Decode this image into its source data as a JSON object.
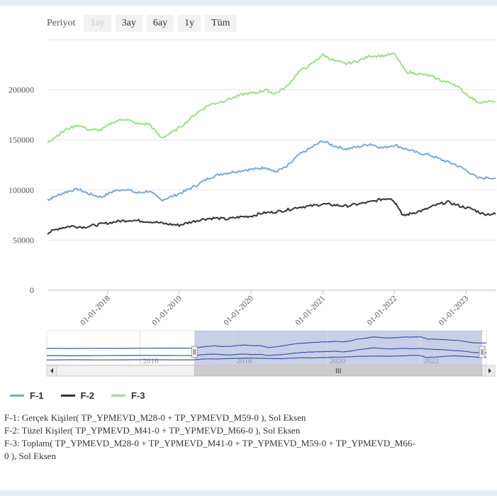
{
  "range_selector": {
    "label": "Periyot",
    "buttons": [
      {
        "label": "1ay",
        "disabled": true
      },
      {
        "label": "3ay",
        "disabled": false
      },
      {
        "label": "6ay",
        "disabled": false
      },
      {
        "label": "1y",
        "disabled": false
      },
      {
        "label": "Tüm",
        "disabled": false
      }
    ]
  },
  "chart_data": {
    "type": "line",
    "title": "",
    "xlabel": "",
    "ylabel": "",
    "xlim": [
      "2017-03-01",
      "2023-06-01"
    ],
    "ylim": [
      0,
      250000
    ],
    "y_ticks": [
      0,
      50000,
      100000,
      150000,
      200000
    ],
    "y_tick_labels": [
      "0",
      "50000",
      "100000",
      "150000",
      "200000"
    ],
    "x_ticks": [
      "2018-01-01",
      "2019-01-01",
      "2020-01-01",
      "2021-01-01",
      "2022-01-01",
      "2023-01-01"
    ],
    "x_tick_labels": [
      "01-01-2018",
      "01-01-2019",
      "01-01-2020",
      "01-01-2021",
      "01-01-2022",
      "01-01-2023"
    ],
    "grid": true,
    "legend_position": "bottom-left",
    "series": [
      {
        "name": "F-1",
        "color": "#7ca7d8",
        "points": [
          [
            "2017-03-01",
            90000
          ],
          [
            "2017-04-01",
            93000
          ],
          [
            "2017-06-01",
            98000
          ],
          [
            "2017-08-01",
            101000
          ],
          [
            "2017-10-01",
            96000
          ],
          [
            "2017-12-01",
            93000
          ],
          [
            "2018-02-01",
            99000
          ],
          [
            "2018-04-01",
            101000
          ],
          [
            "2018-06-01",
            97000
          ],
          [
            "2018-08-01",
            99000
          ],
          [
            "2018-10-01",
            90000
          ],
          [
            "2018-12-01",
            94000
          ],
          [
            "2019-02-01",
            99000
          ],
          [
            "2019-04-01",
            105000
          ],
          [
            "2019-06-01",
            112000
          ],
          [
            "2019-08-01",
            116000
          ],
          [
            "2019-10-01",
            118000
          ],
          [
            "2019-12-01",
            120000
          ],
          [
            "2020-02-01",
            121000
          ],
          [
            "2020-03-15",
            123000
          ],
          [
            "2020-05-01",
            118000
          ],
          [
            "2020-07-01",
            123000
          ],
          [
            "2020-09-01",
            135000
          ],
          [
            "2020-11-01",
            142000
          ],
          [
            "2021-01-01",
            149000
          ],
          [
            "2021-03-01",
            144000
          ],
          [
            "2021-05-01",
            141000
          ],
          [
            "2021-07-01",
            143000
          ],
          [
            "2021-09-01",
            146000
          ],
          [
            "2021-11-01",
            142000
          ],
          [
            "2022-01-01",
            145000
          ],
          [
            "2022-03-01",
            141000
          ],
          [
            "2022-05-01",
            137000
          ],
          [
            "2022-07-01",
            135000
          ],
          [
            "2022-09-01",
            130000
          ],
          [
            "2022-11-01",
            126000
          ],
          [
            "2023-01-01",
            120000
          ],
          [
            "2023-03-01",
            112000
          ],
          [
            "2023-06-01",
            112000
          ]
        ]
      },
      {
        "name": "F-2",
        "color": "#333333",
        "points": [
          [
            "2017-03-01",
            57000
          ],
          [
            "2017-05-01",
            62000
          ],
          [
            "2017-07-01",
            64000
          ],
          [
            "2017-09-01",
            63000
          ],
          [
            "2017-11-01",
            65000
          ],
          [
            "2018-01-01",
            67000
          ],
          [
            "2018-03-01",
            69000
          ],
          [
            "2018-05-01",
            70000
          ],
          [
            "2018-07-01",
            69000
          ],
          [
            "2018-09-01",
            68000
          ],
          [
            "2018-11-01",
            66000
          ],
          [
            "2019-01-01",
            65000
          ],
          [
            "2019-03-01",
            68000
          ],
          [
            "2019-05-01",
            71000
          ],
          [
            "2019-07-01",
            72000
          ],
          [
            "2019-09-01",
            71000
          ],
          [
            "2019-11-01",
            73000
          ],
          [
            "2020-01-01",
            74000
          ],
          [
            "2020-03-01",
            77000
          ],
          [
            "2020-05-01",
            78000
          ],
          [
            "2020-07-01",
            80000
          ],
          [
            "2020-09-01",
            83000
          ],
          [
            "2020-11-01",
            84000
          ],
          [
            "2021-01-01",
            86000
          ],
          [
            "2021-03-01",
            85000
          ],
          [
            "2021-05-01",
            84000
          ],
          [
            "2021-07-01",
            86000
          ],
          [
            "2021-09-01",
            88000
          ],
          [
            "2021-11-01",
            91000
          ],
          [
            "2021-12-15",
            92000
          ],
          [
            "2022-01-20",
            84000
          ],
          [
            "2022-02-15",
            74000
          ],
          [
            "2022-04-01",
            77000
          ],
          [
            "2022-06-01",
            80000
          ],
          [
            "2022-08-01",
            85000
          ],
          [
            "2022-10-01",
            88000
          ],
          [
            "2022-12-01",
            84000
          ],
          [
            "2023-02-01",
            81000
          ],
          [
            "2023-04-01",
            76000
          ],
          [
            "2023-06-01",
            76000
          ]
        ]
      },
      {
        "name": "F-3",
        "color": "#9ee089",
        "points": [
          [
            "2017-03-01",
            147000
          ],
          [
            "2017-04-01",
            152000
          ],
          [
            "2017-06-01",
            160000
          ],
          [
            "2017-08-01",
            165000
          ],
          [
            "2017-10-01",
            160000
          ],
          [
            "2017-12-01",
            160000
          ],
          [
            "2018-02-01",
            168000
          ],
          [
            "2018-04-01",
            171000
          ],
          [
            "2018-06-01",
            166000
          ],
          [
            "2018-08-01",
            166000
          ],
          [
            "2018-10-01",
            152000
          ],
          [
            "2018-12-01",
            158000
          ],
          [
            "2019-02-01",
            167000
          ],
          [
            "2019-04-01",
            177000
          ],
          [
            "2019-06-01",
            185000
          ],
          [
            "2019-08-01",
            188000
          ],
          [
            "2019-10-01",
            192000
          ],
          [
            "2019-12-01",
            196000
          ],
          [
            "2020-02-01",
            197000
          ],
          [
            "2020-03-15",
            200000
          ],
          [
            "2020-05-01",
            196000
          ],
          [
            "2020-07-01",
            203000
          ],
          [
            "2020-09-01",
            218000
          ],
          [
            "2020-11-01",
            225000
          ],
          [
            "2021-01-01",
            235000
          ],
          [
            "2021-03-01",
            229000
          ],
          [
            "2021-05-01",
            226000
          ],
          [
            "2021-07-01",
            229000
          ],
          [
            "2021-09-01",
            234000
          ],
          [
            "2021-11-01",
            234000
          ],
          [
            "2022-01-01",
            236000
          ],
          [
            "2022-03-01",
            218000
          ],
          [
            "2022-05-01",
            216000
          ],
          [
            "2022-07-01",
            214000
          ],
          [
            "2022-09-01",
            209000
          ],
          [
            "2022-11-01",
            206000
          ],
          [
            "2023-01-01",
            196000
          ],
          [
            "2023-03-01",
            188000
          ],
          [
            "2023-06-01",
            188000
          ]
        ]
      }
    ],
    "navigator": {
      "xlim": [
        "2014-01-01",
        "2023-06-01"
      ],
      "year_labels": [
        "2016",
        "2018",
        "2020",
        "2022"
      ],
      "selected_range": [
        "2017-03-01",
        "2023-06-01"
      ],
      "scrollbar_glyph": "III"
    }
  },
  "descriptions": [
    "F-1: Gerçek Kişiler( TP_YPMEVD_M28-0 + TP_YPMEVD_M59-0 ), Sol Eksen",
    "F-2: Tüzel Kişiler( TP_YPMEVD_M41-0 + TP_YPMEVD_M66-0 ), Sol Eksen",
    "F-3: Toplam( TP_YPMEVD_M28-0 + TP_YPMEVD_M41-0 + TP_YPMEVD_M59-0 + TP_YPMEVD_M66-",
    "0 ), Sol Eksen"
  ]
}
